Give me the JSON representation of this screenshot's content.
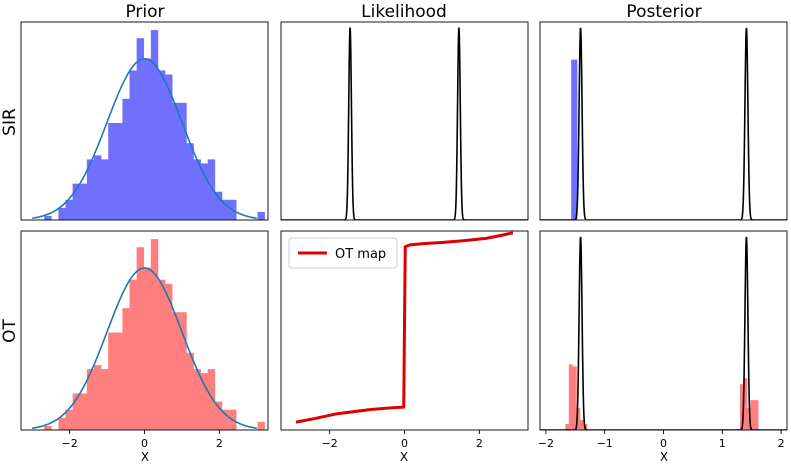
{
  "chart_data": {
    "type": "histogram-grid",
    "rows": [
      "SIR",
      "OT"
    ],
    "columns": [
      "Prior",
      "Likelihood",
      "Posterior"
    ],
    "x_label": "X",
    "panels": [
      {
        "id": "sir-prior",
        "row": "SIR",
        "column": "Prior",
        "xlim": [
          -3.3,
          3.3
        ],
        "ylim": [
          0,
          0.49
        ],
        "hist": {
          "color": "#7070ff",
          "bins": [
            -2.68,
            -2.49,
            -2.3,
            -2.11,
            -1.92,
            -1.73,
            -1.54,
            -1.35,
            -1.16,
            -0.97,
            -0.78,
            -0.59,
            -0.4,
            -0.21,
            -0.02,
            0.17,
            0.36,
            0.55,
            0.74,
            0.93,
            1.12,
            1.31,
            1.5,
            1.69,
            1.88,
            2.07,
            2.26,
            2.45,
            2.64,
            2.83,
            3.02,
            3.21
          ],
          "heights": [
            0.01,
            0.0,
            0.03,
            0.05,
            0.09,
            0.09,
            0.15,
            0.16,
            0.15,
            0.24,
            0.24,
            0.3,
            0.37,
            0.45,
            0.4,
            0.47,
            0.37,
            0.36,
            0.29,
            0.29,
            0.19,
            0.15,
            0.14,
            0.15,
            0.07,
            0.05,
            0.05,
            0.0,
            0.0,
            0.0,
            0.02
          ]
        },
        "curve": {
          "color": "#1f77b4",
          "kind": "normal-pdf",
          "x_range": [
            -3.0,
            3.0
          ]
        }
      },
      {
        "id": "sir-likelihood",
        "row": "SIR",
        "column": "Likelihood",
        "xlim": [
          -3.2,
          3.2
        ],
        "ylim": [
          0,
          1.0
        ],
        "curve": {
          "color": "#000000",
          "kind": "two-peaks",
          "peaks": [
            -1.41,
            1.41
          ],
          "width": 0.035,
          "height": 0.97
        }
      },
      {
        "id": "sir-posterior",
        "row": "SIR",
        "column": "Posterior",
        "xlim": [
          -2.1,
          2.1
        ],
        "ylim": [
          0,
          1.0
        ],
        "hist": {
          "color": "#7070ff",
          "bins": [
            -1.57,
            -1.47
          ],
          "heights": [
            0.81
          ]
        },
        "curve": {
          "color": "#000000",
          "kind": "two-peaks",
          "peaks": [
            -1.41,
            1.41
          ],
          "width": 0.025,
          "height": 0.97
        }
      },
      {
        "id": "ot-prior",
        "row": "OT",
        "column": "Prior",
        "xlim": [
          -3.3,
          3.3
        ],
        "ylim": [
          0,
          0.49
        ],
        "hist": {
          "color": "#ff7f7f",
          "bins": [
            -2.68,
            -2.49,
            -2.3,
            -2.11,
            -1.92,
            -1.73,
            -1.54,
            -1.35,
            -1.16,
            -0.97,
            -0.78,
            -0.59,
            -0.4,
            -0.21,
            -0.02,
            0.17,
            0.36,
            0.55,
            0.74,
            0.93,
            1.12,
            1.31,
            1.5,
            1.69,
            1.88,
            2.07,
            2.26,
            2.45,
            2.64,
            2.83,
            3.02,
            3.21
          ],
          "heights": [
            0.01,
            0.0,
            0.03,
            0.05,
            0.09,
            0.09,
            0.15,
            0.16,
            0.15,
            0.24,
            0.24,
            0.3,
            0.37,
            0.45,
            0.4,
            0.47,
            0.37,
            0.36,
            0.29,
            0.29,
            0.19,
            0.15,
            0.14,
            0.15,
            0.07,
            0.05,
            0.05,
            0.0,
            0.0,
            0.0,
            0.02
          ]
        },
        "curve": {
          "color": "#1f77b4",
          "kind": "normal-pdf",
          "x_range": [
            -3.0,
            3.0
          ]
        },
        "x_ticks": [
          -2,
          0,
          2
        ],
        "x_tick_labels": [
          "−2",
          "0",
          "2"
        ]
      },
      {
        "id": "ot-likelihood",
        "row": "OT",
        "column": "Likelihood",
        "xlim": [
          -3.3,
          3.3
        ],
        "ylim": [
          -1.75,
          1.55
        ],
        "line": {
          "color": "#dd0000",
          "label": "OT map",
          "x": [
            -2.9,
            -2.4,
            -1.8,
            -1.4,
            -0.9,
            -0.3,
            -0.02,
            0.0,
            0.02,
            0.15,
            0.5,
            1.0,
            1.6,
            2.2,
            2.6,
            2.9
          ],
          "y": [
            -1.62,
            -1.56,
            -1.48,
            -1.45,
            -1.41,
            -1.38,
            -1.37,
            0.0,
            1.29,
            1.32,
            1.34,
            1.36,
            1.39,
            1.43,
            1.48,
            1.52
          ]
        },
        "legend": {
          "position": "top-left"
        },
        "x_ticks": [
          -2,
          0,
          2
        ],
        "x_tick_labels": [
          "−2",
          "0",
          "2"
        ]
      },
      {
        "id": "ot-posterior",
        "row": "OT",
        "column": "Posterior",
        "xlim": [
          -2.1,
          2.1
        ],
        "ylim": [
          0,
          1.0
        ],
        "hist": {
          "color": "#ff7f7f",
          "bins": [
            -1.67,
            -1.61,
            -1.55,
            -1.48,
            -1.42,
            -1.36,
            -1.3,
            1.3,
            1.36,
            1.42,
            1.48,
            1.55,
            1.61
          ],
          "heights": [
            0.03,
            0.33,
            0.32,
            0.11,
            0.05,
            0.03,
            0.0,
            0.23,
            0.26,
            0.11,
            0.15,
            0.15
          ],
          "note": "last column extends to 1.61"
        },
        "curve": {
          "color": "#000000",
          "kind": "two-peaks",
          "peaks": [
            -1.41,
            1.41
          ],
          "width": 0.025,
          "height": 0.97
        },
        "x_ticks": [
          -2,
          -1,
          0,
          1,
          2
        ],
        "x_tick_labels": [
          "−2",
          "−1",
          "0",
          "1",
          "2"
        ]
      }
    ]
  }
}
